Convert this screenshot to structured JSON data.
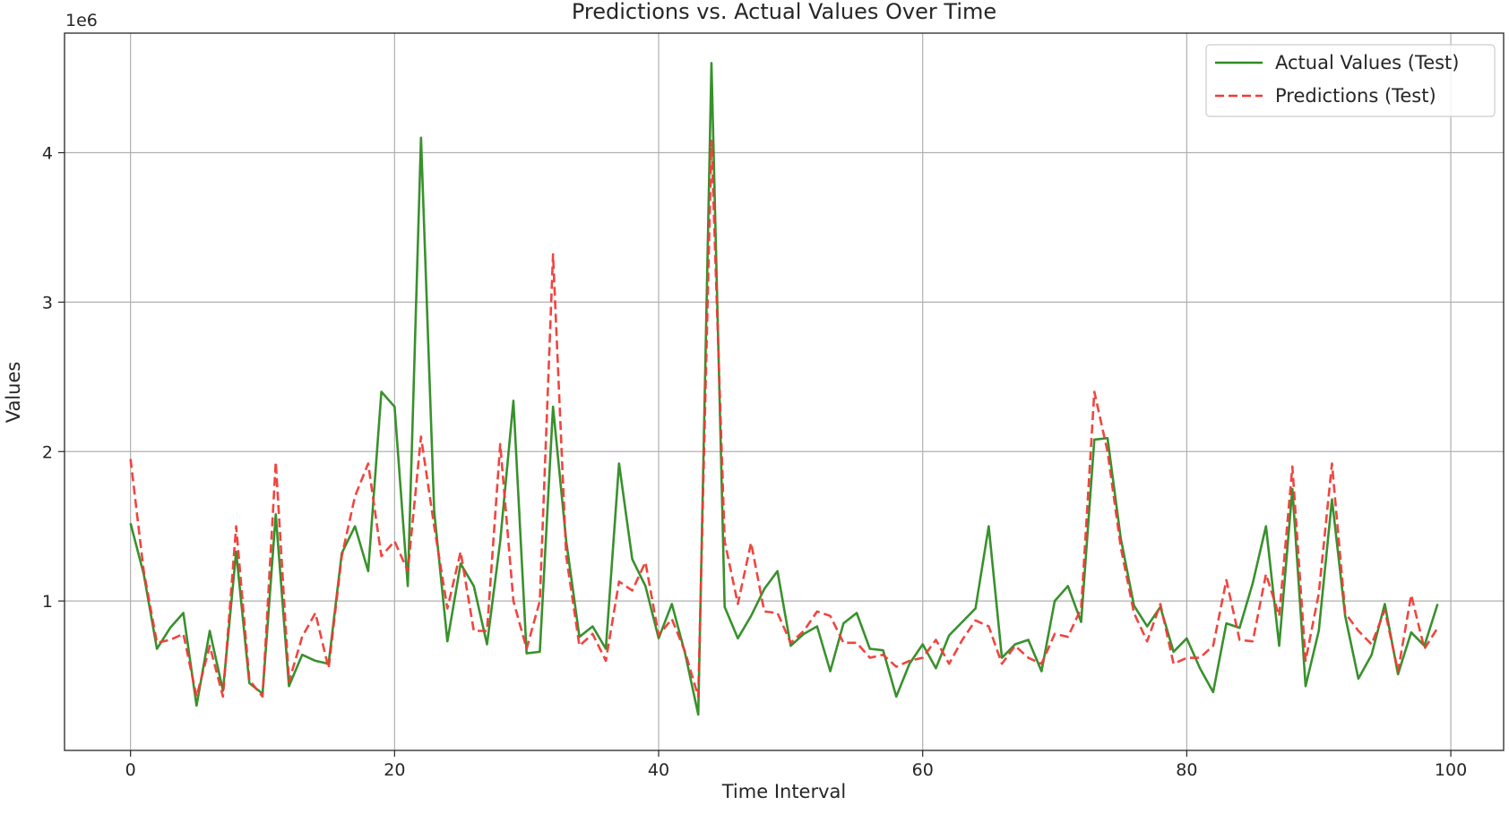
{
  "chart_data": {
    "type": "line",
    "title": "Predictions vs. Actual Values Over Time",
    "xlabel": "Time Interval",
    "ylabel": "Values",
    "y_offset_label": "1e6",
    "y_scale": 1000000,
    "xlim": [
      -5,
      104
    ],
    "ylim": [
      0.0,
      4.8
    ],
    "x_ticks": [
      0,
      20,
      40,
      60,
      80,
      100
    ],
    "x_tick_labels": [
      "0",
      "20",
      "40",
      "60",
      "80",
      "100"
    ],
    "y_ticks": [
      1,
      2,
      3,
      4
    ],
    "y_tick_labels": [
      "1",
      "2",
      "3",
      "4"
    ],
    "grid": true,
    "legend_position": "top-right",
    "series": [
      {
        "name": "Actual Values (Test)",
        "color": "#2e8b22",
        "style": "solid",
        "values": [
          1.52,
          1.18,
          0.68,
          0.82,
          0.92,
          0.3,
          0.8,
          0.4,
          1.33,
          0.45,
          0.38,
          1.58,
          0.43,
          0.64,
          0.6,
          0.58,
          1.32,
          1.5,
          1.2,
          2.4,
          2.3,
          1.1,
          4.1,
          1.6,
          0.73,
          1.25,
          1.1,
          0.71,
          1.4,
          2.34,
          0.65,
          0.66,
          2.3,
          1.4,
          0.76,
          0.83,
          0.68,
          1.92,
          1.28,
          1.1,
          0.75,
          0.98,
          0.65,
          0.24,
          4.6,
          0.96,
          0.75,
          0.9,
          1.08,
          1.2,
          0.7,
          0.78,
          0.83,
          0.53,
          0.85,
          0.92,
          0.68,
          0.67,
          0.36,
          0.58,
          0.71,
          0.55,
          0.77,
          0.86,
          0.95,
          1.5,
          0.62,
          0.71,
          0.74,
          0.53,
          1.0,
          1.1,
          0.86,
          2.08,
          2.09,
          1.42,
          0.97,
          0.83,
          0.96,
          0.66,
          0.75,
          0.55,
          0.39,
          0.85,
          0.82,
          1.12,
          1.5,
          0.7,
          1.75,
          0.43,
          0.8,
          1.68,
          0.9,
          0.48,
          0.64,
          0.98,
          0.51,
          0.79,
          0.7,
          0.98
        ]
      },
      {
        "name": "Predictions (Test)",
        "color": "#ef3b36",
        "style": "dashed",
        "values": [
          1.95,
          1.2,
          0.72,
          0.74,
          0.78,
          0.36,
          0.7,
          0.36,
          1.5,
          0.47,
          0.36,
          1.93,
          0.46,
          0.76,
          0.92,
          0.55,
          1.3,
          1.7,
          1.92,
          1.3,
          1.4,
          1.2,
          2.1,
          1.5,
          0.95,
          1.33,
          0.8,
          0.8,
          2.05,
          1.0,
          0.68,
          1.0,
          3.32,
          1.3,
          0.7,
          0.78,
          0.6,
          1.13,
          1.07,
          1.26,
          0.77,
          0.88,
          0.66,
          0.36,
          4.08,
          1.4,
          0.98,
          1.39,
          0.93,
          0.92,
          0.72,
          0.8,
          0.93,
          0.9,
          0.72,
          0.72,
          0.62,
          0.64,
          0.56,
          0.6,
          0.62,
          0.74,
          0.58,
          0.74,
          0.87,
          0.83,
          0.58,
          0.7,
          0.62,
          0.58,
          0.78,
          0.76,
          0.95,
          2.4,
          2.0,
          1.36,
          0.92,
          0.73,
          0.98,
          0.58,
          0.62,
          0.62,
          0.7,
          1.14,
          0.74,
          0.73,
          1.18,
          0.9,
          1.9,
          0.6,
          1.05,
          1.92,
          0.92,
          0.8,
          0.71,
          0.94,
          0.53,
          1.04,
          0.68,
          0.82
        ]
      }
    ]
  }
}
